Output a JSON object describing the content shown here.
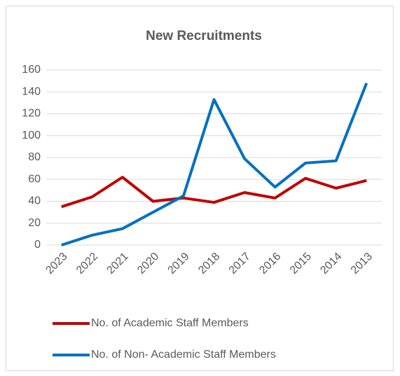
{
  "chart_data": {
    "type": "line",
    "title": "New Recruitments",
    "categories": [
      "2023",
      "2022",
      "2021",
      "2020",
      "2019",
      "2018",
      "2017",
      "2016",
      "2015",
      "2014",
      "2013"
    ],
    "series": [
      {
        "name": "No. of Academic Staff Members",
        "color": "#c00000",
        "values": [
          35,
          44,
          62,
          40,
          43,
          39,
          48,
          43,
          61,
          52,
          59
        ]
      },
      {
        "name": "No. of Non- Academic Staff Members",
        "color": "#0070c0",
        "values": [
          0,
          9,
          15,
          30,
          45,
          133,
          79,
          53,
          75,
          77,
          148
        ]
      }
    ],
    "ylim": [
      0,
      160
    ],
    "yticks": [
      0,
      20,
      40,
      60,
      80,
      100,
      120,
      140,
      160
    ],
    "grid": true,
    "legend": "bottom"
  }
}
